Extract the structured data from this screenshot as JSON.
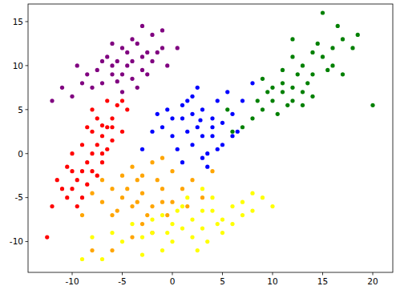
{
  "chart_data": {
    "type": "scatter",
    "marker": "circle",
    "grid": false,
    "xlim": [
      -14.4,
      22.0
    ],
    "ylim": [
      -13.5,
      17.0
    ],
    "xticks": [
      -10,
      -5,
      0,
      5,
      10,
      15,
      20
    ],
    "yticks": [
      -10,
      -5,
      0,
      5,
      10,
      15
    ],
    "series": [
      {
        "color": "purple",
        "x": [
          -4.5,
          -3,
          -6,
          -5,
          -2,
          -7,
          -4,
          -3.5,
          -6.5,
          -1.5,
          -8,
          -5.5,
          -2.5,
          -4,
          -7.5,
          -1,
          -3,
          -6,
          -9,
          -10,
          -11,
          -2,
          -0.5,
          -5,
          -4.5,
          -8.5,
          -3.5,
          -6,
          -1,
          -12,
          -2.5,
          -5,
          -7,
          -3,
          0.5,
          -4,
          -9.5,
          -5.5
        ],
        "values": [
          10,
          11,
          9,
          12,
          10.5,
          8,
          8.5,
          12.5,
          11,
          11.5,
          7.5,
          10.5,
          9,
          13,
          9.5,
          12,
          9.5,
          12.5,
          8,
          6.5,
          7.5,
          13.5,
          10,
          7,
          11.5,
          9,
          7.5,
          10,
          14,
          6,
          11.5,
          9,
          10.5,
          14.5,
          12,
          10.5,
          10,
          8.2
        ]
      },
      {
        "color": "red",
        "x": [
          -8,
          -7,
          -9,
          -6,
          -10,
          -7.5,
          -8.5,
          -6.5,
          -9.5,
          -5.5,
          -10.5,
          -8,
          -7,
          -9,
          -6,
          -8.5,
          -7.5,
          -10,
          -11,
          -5,
          -6.5,
          -9,
          -7,
          -8,
          -12,
          -11.5,
          -6,
          -8.5,
          -4.5,
          -7.5,
          -10,
          -9.5,
          -12.5,
          -5,
          -6.5,
          -8,
          -7,
          -10.5
        ],
        "values": [
          0,
          2,
          -2,
          4,
          -4,
          1,
          -1,
          3,
          -3,
          5.5,
          -5,
          2.5,
          -1,
          1,
          1.5,
          -3.5,
          4,
          -2,
          -4,
          6,
          6,
          -5,
          0,
          -2,
          -6,
          -3,
          3,
          3,
          5,
          -2.5,
          0,
          -6,
          -9.5,
          2.5,
          0.5,
          5,
          3.2,
          -1.5
        ]
      },
      {
        "color": "blue",
        "x": [
          2.5,
          1,
          4,
          3,
          0,
          2,
          5,
          1.5,
          3.5,
          -1,
          4.5,
          6,
          0.5,
          2,
          3,
          -2,
          7,
          5,
          1,
          2.5,
          4,
          -0.5,
          6.5,
          3.5,
          1.5,
          0,
          5.5,
          8,
          -3,
          2,
          4,
          3,
          1,
          6,
          -1.5,
          4.5,
          2.8
        ],
        "values": [
          3,
          4,
          2,
          5,
          2,
          1,
          3.5,
          6,
          0,
          3,
          6,
          4.5,
          0.5,
          4.5,
          2,
          2.5,
          6,
          1,
          -1,
          7.5,
          4,
          5,
          2.5,
          -1.5,
          2.5,
          4,
          7,
          8,
          0.5,
          6.5,
          3,
          -0.5,
          5.5,
          2,
          4.5,
          0.5,
          3.8
        ]
      },
      {
        "color": "green",
        "x": [
          12,
          10,
          14,
          11,
          13,
          9,
          15,
          12,
          11,
          13,
          8,
          16,
          10,
          14,
          12.5,
          7,
          17,
          11.5,
          13.5,
          9.5,
          15.5,
          10.5,
          14.5,
          12,
          8.5,
          16,
          6,
          18,
          13,
          11,
          15,
          20,
          17,
          12,
          9,
          14,
          5.5,
          16.5,
          18.5
        ],
        "values": [
          7.5,
          6,
          9,
          8,
          10,
          5,
          11,
          6,
          9.5,
          7,
          4,
          12,
          7.5,
          11.5,
          9,
          3,
          13,
          5.5,
          8,
          7,
          9.5,
          4.5,
          12.5,
          11,
          6,
          10,
          2.5,
          12,
          5.5,
          7,
          16,
          5.5,
          9,
          13,
          8.5,
          6.5,
          5,
          14.5,
          13.5
        ]
      },
      {
        "color": "orange",
        "x": [
          -3,
          -5,
          -1,
          -3,
          -4,
          -2,
          -6,
          0,
          -3.5,
          -1.5,
          -5,
          -7,
          -2.5,
          1,
          -4.5,
          -0.5,
          -6,
          -3,
          2,
          -8,
          -2,
          -4,
          1.5,
          -5.5,
          0,
          -1,
          -3.5,
          -7,
          3,
          -9,
          -2,
          4,
          -4,
          -6,
          -8,
          -1
        ],
        "values": [
          -4.5,
          -5,
          -4,
          -2.5,
          -6,
          -6,
          -4,
          -5.5,
          -3,
          -3,
          -2.5,
          -5.5,
          -7,
          -4,
          -4,
          -7,
          -7,
          -8,
          -3,
          -4.5,
          -1,
          -1.5,
          -6,
          -6.5,
          -2,
          -5.5,
          -5.5,
          -3,
          -5,
          -7,
          -9,
          -2,
          -9.5,
          -11,
          -11,
          -0.5
        ]
      },
      {
        "color": "yellow",
        "x": [
          2,
          0,
          4,
          -2,
          3,
          6,
          1,
          -1,
          5,
          -3,
          2,
          7,
          0,
          4,
          -4,
          3,
          1,
          8,
          -1,
          5,
          -2,
          6,
          9,
          -5,
          0.5,
          2.5,
          -3,
          3.5,
          7,
          1.5,
          -6,
          -0.5,
          4.5,
          -8,
          -7,
          -9,
          10,
          3,
          8
        ],
        "values": [
          -7.5,
          -8,
          -6.5,
          -9,
          -8.5,
          -6,
          -6,
          -7,
          -7.5,
          -9.5,
          -9.5,
          -5.5,
          -10,
          -5,
          -8,
          -6.5,
          -8.5,
          -4.5,
          -11,
          -9,
          -7.5,
          -8,
          -5,
          -10,
          -6.5,
          -11,
          -11.5,
          -10,
          -7,
          -5,
          -9,
          -9,
          -8,
          -9.5,
          -12,
          -12,
          -6,
          -4,
          -6.5
        ]
      }
    ]
  }
}
